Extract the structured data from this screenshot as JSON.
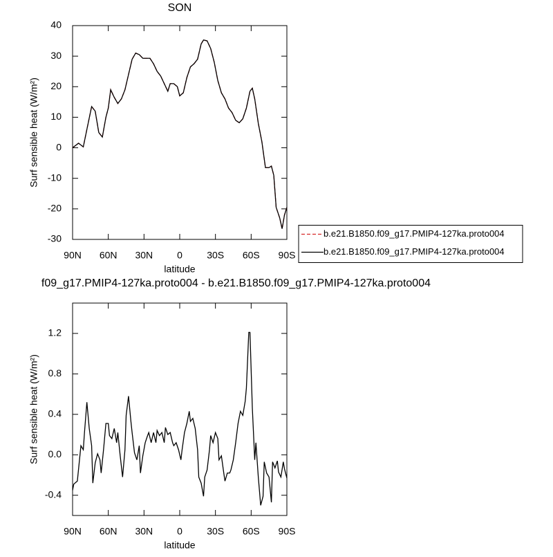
{
  "chart_data": [
    {
      "type": "line",
      "title": "SON",
      "xlabel": "latitude",
      "ylabel": "Surf sensible heat (W/m²)",
      "x": [
        90,
        85,
        81,
        78,
        74,
        71,
        68,
        65,
        62,
        60,
        58,
        55,
        52,
        49,
        46,
        43,
        40,
        37,
        34,
        31,
        28,
        25,
        22,
        19,
        16,
        13,
        10,
        8,
        5,
        2,
        0,
        -3,
        -6,
        -9,
        -12,
        -15,
        -18,
        -20,
        -23,
        -26,
        -29,
        -32,
        -35,
        -38,
        -41,
        -44,
        -47,
        -50,
        -53,
        -56,
        -59,
        -61,
        -63,
        -66,
        -69,
        -72,
        -75,
        -77,
        -79,
        -81,
        -84,
        -86,
        -88,
        -90
      ],
      "series": [
        {
          "name": "b.e21.B1850.f09_g17.PMIP4-127ka.proto004",
          "color": "#d62728",
          "line_style": "dashed",
          "values": [
            0,
            1.5,
            0.3,
            6,
            13.5,
            12,
            5,
            3.5,
            10,
            13,
            19,
            16.5,
            14.5,
            16,
            19,
            24,
            29,
            31,
            30.5,
            29.3,
            29.3,
            29.3,
            27.5,
            25,
            23.5,
            21,
            18.5,
            21,
            21,
            20,
            17,
            18,
            23,
            26.5,
            27.5,
            29,
            34,
            35.3,
            35,
            32.5,
            28,
            22,
            18,
            16,
            13,
            11.5,
            9,
            8.2,
            9.5,
            13,
            18.5,
            19.5,
            16,
            8,
            2,
            -6.5,
            -6.5,
            -6,
            -9,
            -19.5,
            -23,
            -26.5,
            -22,
            -19.5
          ]
        },
        {
          "name": "b.e21.B1850.f09_g17.PMIP4-127ka.proto004",
          "color": "#000000",
          "line_style": "solid",
          "values": [
            0,
            1.5,
            0.3,
            6,
            13.5,
            12,
            5,
            3.5,
            10,
            13,
            19,
            16.5,
            14.5,
            16,
            19,
            24,
            29,
            31,
            30.5,
            29.3,
            29.3,
            29.3,
            27.5,
            25,
            23.5,
            21,
            18.5,
            21,
            21,
            20,
            17,
            18,
            23,
            26.5,
            27.5,
            29,
            34,
            35.3,
            35,
            32.5,
            28,
            22,
            18,
            16,
            13,
            11.5,
            9,
            8.2,
            9.5,
            13,
            18.5,
            19.5,
            16,
            8,
            2,
            -6.5,
            -6.5,
            -6,
            -9,
            -19.5,
            -23,
            -26.5,
            -22,
            -19.5
          ]
        }
      ],
      "xlim": [
        90,
        -90
      ],
      "xticks": [
        {
          "value": 90,
          "label": "90N"
        },
        {
          "value": 60,
          "label": "60N"
        },
        {
          "value": 30,
          "label": "30N"
        },
        0,
        {
          "value": -30,
          "label": "30S"
        },
        {
          "value": -60,
          "label": "60S"
        },
        {
          "value": -90,
          "label": "90S"
        }
      ],
      "ylim": [
        -30,
        40
      ],
      "yticks": [
        -30,
        -20,
        -10,
        0,
        10,
        20,
        30,
        40
      ],
      "legend": "right"
    },
    {
      "type": "line",
      "title": "f09_g17.PMIP4-127ka.proto004 - b.e21.B1850.f09_g17.PMIP4-127ka.proto004",
      "xlabel": "latitude",
      "ylabel": "Surf sensible heat (W/m²)",
      "x": [
        90,
        89,
        86,
        83,
        81,
        80,
        78,
        76,
        74,
        73,
        71,
        69,
        67,
        66,
        64,
        62,
        60,
        59,
        57,
        55,
        53,
        52,
        50,
        48,
        46,
        45,
        43,
        41,
        40,
        38,
        36,
        34,
        33,
        31,
        29,
        27,
        26,
        24,
        22,
        20,
        19,
        17,
        15,
        13,
        12,
        10,
        8,
        6,
        5,
        3,
        1,
        -1,
        -2,
        -4,
        -6,
        -8,
        -9,
        -11,
        -13,
        -15,
        -16,
        -18,
        -20,
        -21,
        -23,
        -25,
        -26,
        -28,
        -30,
        -32,
        -33,
        -35,
        -37,
        -38,
        -40,
        -42,
        -43,
        -45,
        -47,
        -49,
        -51,
        -53,
        -55,
        -56,
        -58,
        -59,
        -61,
        -63,
        -64,
        -66,
        -68,
        -70,
        -71,
        -73,
        -75,
        -77,
        -78,
        -80,
        -82,
        -83,
        -85,
        -87,
        -88,
        -90
      ],
      "series": [
        {
          "color": "#000000",
          "line_style": "solid",
          "values": [
            -0.35,
            -0.29,
            -0.26,
            0.09,
            0.05,
            0.22,
            0.52,
            0.26,
            0.09,
            -0.28,
            -0.08,
            0.01,
            -0.05,
            -0.18,
            0.05,
            0.31,
            0.31,
            0.19,
            0.16,
            0.26,
            0.12,
            0.22,
            -0.01,
            -0.22,
            0.05,
            0.39,
            0.58,
            0.33,
            0.22,
            0.02,
            -0.05,
            0.09,
            -0.18,
            -0.01,
            0.12,
            0.19,
            0.22,
            0.12,
            0.22,
            0.12,
            0.24,
            0.19,
            0.22,
            0.12,
            0.27,
            0.2,
            0.22,
            0.12,
            0.09,
            0.12,
            0.05,
            -0.05,
            0.05,
            0.22,
            0.31,
            0.43,
            0.33,
            0.36,
            0.26,
            0.05,
            -0.22,
            -0.28,
            -0.41,
            -0.22,
            -0.15,
            0.05,
            0.19,
            0.12,
            0.22,
            0.16,
            -0.05,
            -0.01,
            -0.18,
            -0.26,
            -0.18,
            -0.18,
            -0.15,
            -0.05,
            0.12,
            0.31,
            0.43,
            0.39,
            0.53,
            0.66,
            1.21,
            1.21,
            0.46,
            -0.05,
            0.12,
            -0.22,
            -0.5,
            -0.41,
            -0.07,
            -0.18,
            -0.22,
            -0.47,
            -0.07,
            -0.13,
            -0.06,
            -0.17,
            -0.22,
            -0.07,
            -0.14,
            -0.23
          ]
        }
      ],
      "xlim": [
        90,
        -90
      ],
      "xticks": [
        {
          "value": 90,
          "label": "90N"
        },
        {
          "value": 60,
          "label": "60N"
        },
        {
          "value": 30,
          "label": "30N"
        },
        0,
        {
          "value": -30,
          "label": "30S"
        },
        {
          "value": -60,
          "label": "60S"
        },
        {
          "value": -90,
          "label": "90S"
        }
      ],
      "ylim": [
        -0.6,
        1.5
      ],
      "yticks": [
        -0.4,
        {
          "value": 0,
          "label": "0.0"
        },
        0.4,
        0.8,
        1.2
      ]
    }
  ]
}
